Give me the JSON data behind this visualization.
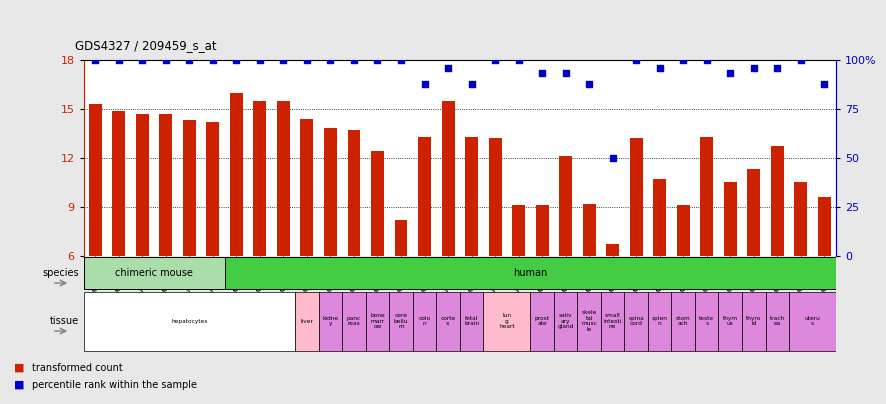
{
  "title": "GDS4327 / 209459_s_at",
  "samples": [
    "GSM837740",
    "GSM837741",
    "GSM837742",
    "GSM837743",
    "GSM837744",
    "GSM837745",
    "GSM837746",
    "GSM837747",
    "GSM837748",
    "GSM837749",
    "GSM837757",
    "GSM837756",
    "GSM837759",
    "GSM837750",
    "GSM837751",
    "GSM837752",
    "GSM837753",
    "GSM837754",
    "GSM837755",
    "GSM837758",
    "GSM837760",
    "GSM837761",
    "GSM837762",
    "GSM837763",
    "GSM837764",
    "GSM837765",
    "GSM837766",
    "GSM837767",
    "GSM837768",
    "GSM837769",
    "GSM837770",
    "GSM837771"
  ],
  "bar_values": [
    15.3,
    14.9,
    14.7,
    14.7,
    14.3,
    14.2,
    16.0,
    15.5,
    15.5,
    14.4,
    13.8,
    13.7,
    12.4,
    8.2,
    13.3,
    15.5,
    13.3,
    13.2,
    9.1,
    9.1,
    12.1,
    9.2,
    6.7,
    13.2,
    10.7,
    9.1,
    13.3,
    10.5,
    11.3,
    12.7,
    10.5,
    9.6
  ],
  "dot_values": [
    18.0,
    18.0,
    18.0,
    18.0,
    18.0,
    18.0,
    18.0,
    18.0,
    18.0,
    18.0,
    18.0,
    18.0,
    18.0,
    18.0,
    16.5,
    17.5,
    16.5,
    18.0,
    18.0,
    17.2,
    17.2,
    16.5,
    12.0,
    18.0,
    17.5,
    18.0,
    18.0,
    17.2,
    17.5,
    17.5,
    18.0,
    16.5
  ],
  "ylim": [
    6,
    18
  ],
  "yticks": [
    6,
    9,
    12,
    15,
    18
  ],
  "ytick_labels_left": [
    "6",
    "9",
    "12",
    "15",
    "18"
  ],
  "ytick_labels_right": [
    "0",
    "25",
    "50",
    "75",
    "100%"
  ],
  "bar_color": "#cc2200",
  "dot_color": "#0000cc",
  "species": [
    {
      "label": "chimeric mouse",
      "start": 0,
      "end": 6,
      "color": "#aaddaa"
    },
    {
      "label": "human",
      "start": 6,
      "end": 32,
      "color": "#44cc44"
    }
  ],
  "tissue_blocks": [
    {
      "label": "hepatocytes",
      "start": 0,
      "end": 9,
      "color": "#ffffff"
    },
    {
      "label": "liver",
      "start": 9,
      "end": 10,
      "color": "#ffbbcc"
    },
    {
      "label": "kidne\ny",
      "start": 10,
      "end": 11,
      "color": "#dd88dd"
    },
    {
      "label": "panc\nreas",
      "start": 11,
      "end": 12,
      "color": "#dd88dd"
    },
    {
      "label": "bone\nmarr\now",
      "start": 12,
      "end": 13,
      "color": "#dd88dd"
    },
    {
      "label": "cere\nbellu\nm",
      "start": 13,
      "end": 14,
      "color": "#dd88dd"
    },
    {
      "label": "colo\nn",
      "start": 14,
      "end": 15,
      "color": "#dd88dd"
    },
    {
      "label": "corte\nx",
      "start": 15,
      "end": 16,
      "color": "#dd88dd"
    },
    {
      "label": "fetal\nbrain",
      "start": 16,
      "end": 17,
      "color": "#dd88dd"
    },
    {
      "label": "lun\ng\nheart",
      "start": 17,
      "end": 19,
      "color": "#ffbbcc"
    },
    {
      "label": "prost\nate",
      "start": 19,
      "end": 20,
      "color": "#dd88dd"
    },
    {
      "label": "saliv\nary\ngland",
      "start": 20,
      "end": 21,
      "color": "#dd88dd"
    },
    {
      "label": "skele\ntal\nmusc\nle",
      "start": 21,
      "end": 22,
      "color": "#dd88dd"
    },
    {
      "label": "small\nintesti\nne",
      "start": 22,
      "end": 23,
      "color": "#dd88dd"
    },
    {
      "label": "spina\ncord",
      "start": 23,
      "end": 24,
      "color": "#dd88dd"
    },
    {
      "label": "splen\nn",
      "start": 24,
      "end": 25,
      "color": "#dd88dd"
    },
    {
      "label": "stom\nach",
      "start": 25,
      "end": 26,
      "color": "#dd88dd"
    },
    {
      "label": "teste\ns",
      "start": 26,
      "end": 27,
      "color": "#dd88dd"
    },
    {
      "label": "thym\nus",
      "start": 27,
      "end": 28,
      "color": "#dd88dd"
    },
    {
      "label": "thyro\nid",
      "start": 28,
      "end": 29,
      "color": "#dd88dd"
    },
    {
      "label": "trach\nea",
      "start": 29,
      "end": 30,
      "color": "#dd88dd"
    },
    {
      "label": "uteru\ns",
      "start": 30,
      "end": 32,
      "color": "#dd88dd"
    }
  ],
  "bg_color": "#e8e8e8",
  "plot_bg_color": "#ffffff",
  "legend_items": [
    {
      "color": "#cc2200",
      "label": "transformed count"
    },
    {
      "color": "#0000cc",
      "label": "percentile rank within the sample"
    }
  ]
}
